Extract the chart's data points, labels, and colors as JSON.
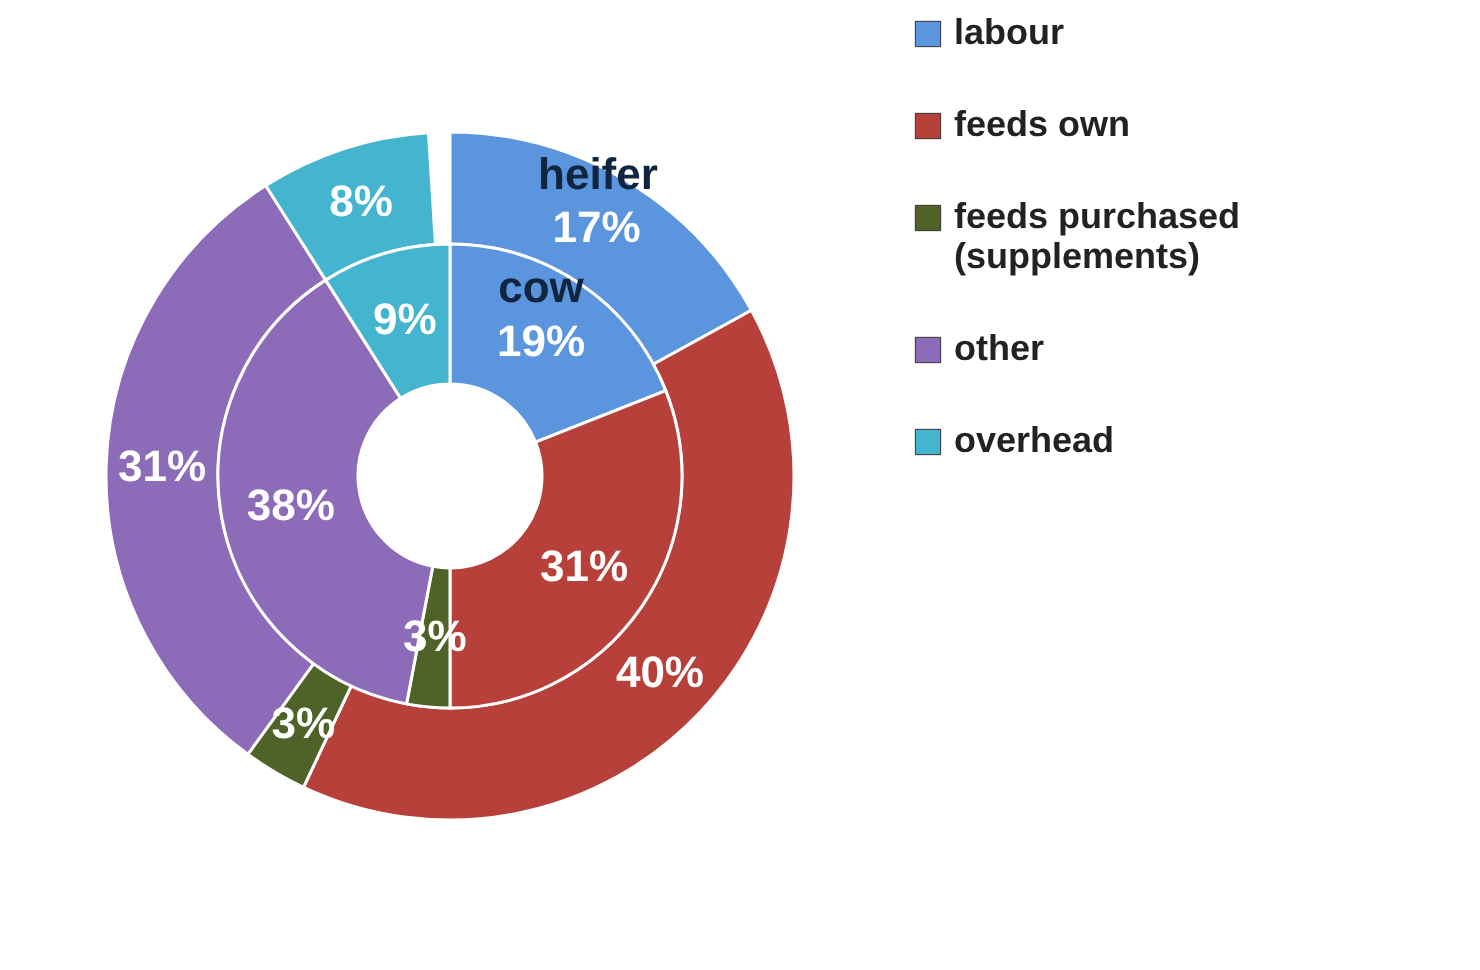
{
  "chart_data": {
    "type": "donut",
    "categories": [
      "labour",
      "feeds own",
      "feeds purchased (supplements)",
      "other",
      "overhead"
    ],
    "colors": [
      "#5b95de",
      "#b8403b",
      "#4f6228",
      "#8c6bb8",
      "#45b4cf"
    ],
    "series": [
      {
        "name": "heifer",
        "values": [
          17,
          40,
          3,
          31,
          8
        ],
        "value_labels": [
          "17%",
          "40%",
          "3%",
          "31%",
          "8%"
        ]
      },
      {
        "name": "cow",
        "values": [
          19,
          31,
          3,
          38,
          9
        ],
        "value_labels": [
          "19%",
          "31%",
          "3%",
          "38%",
          "9%"
        ]
      }
    ],
    "legend": "right"
  }
}
